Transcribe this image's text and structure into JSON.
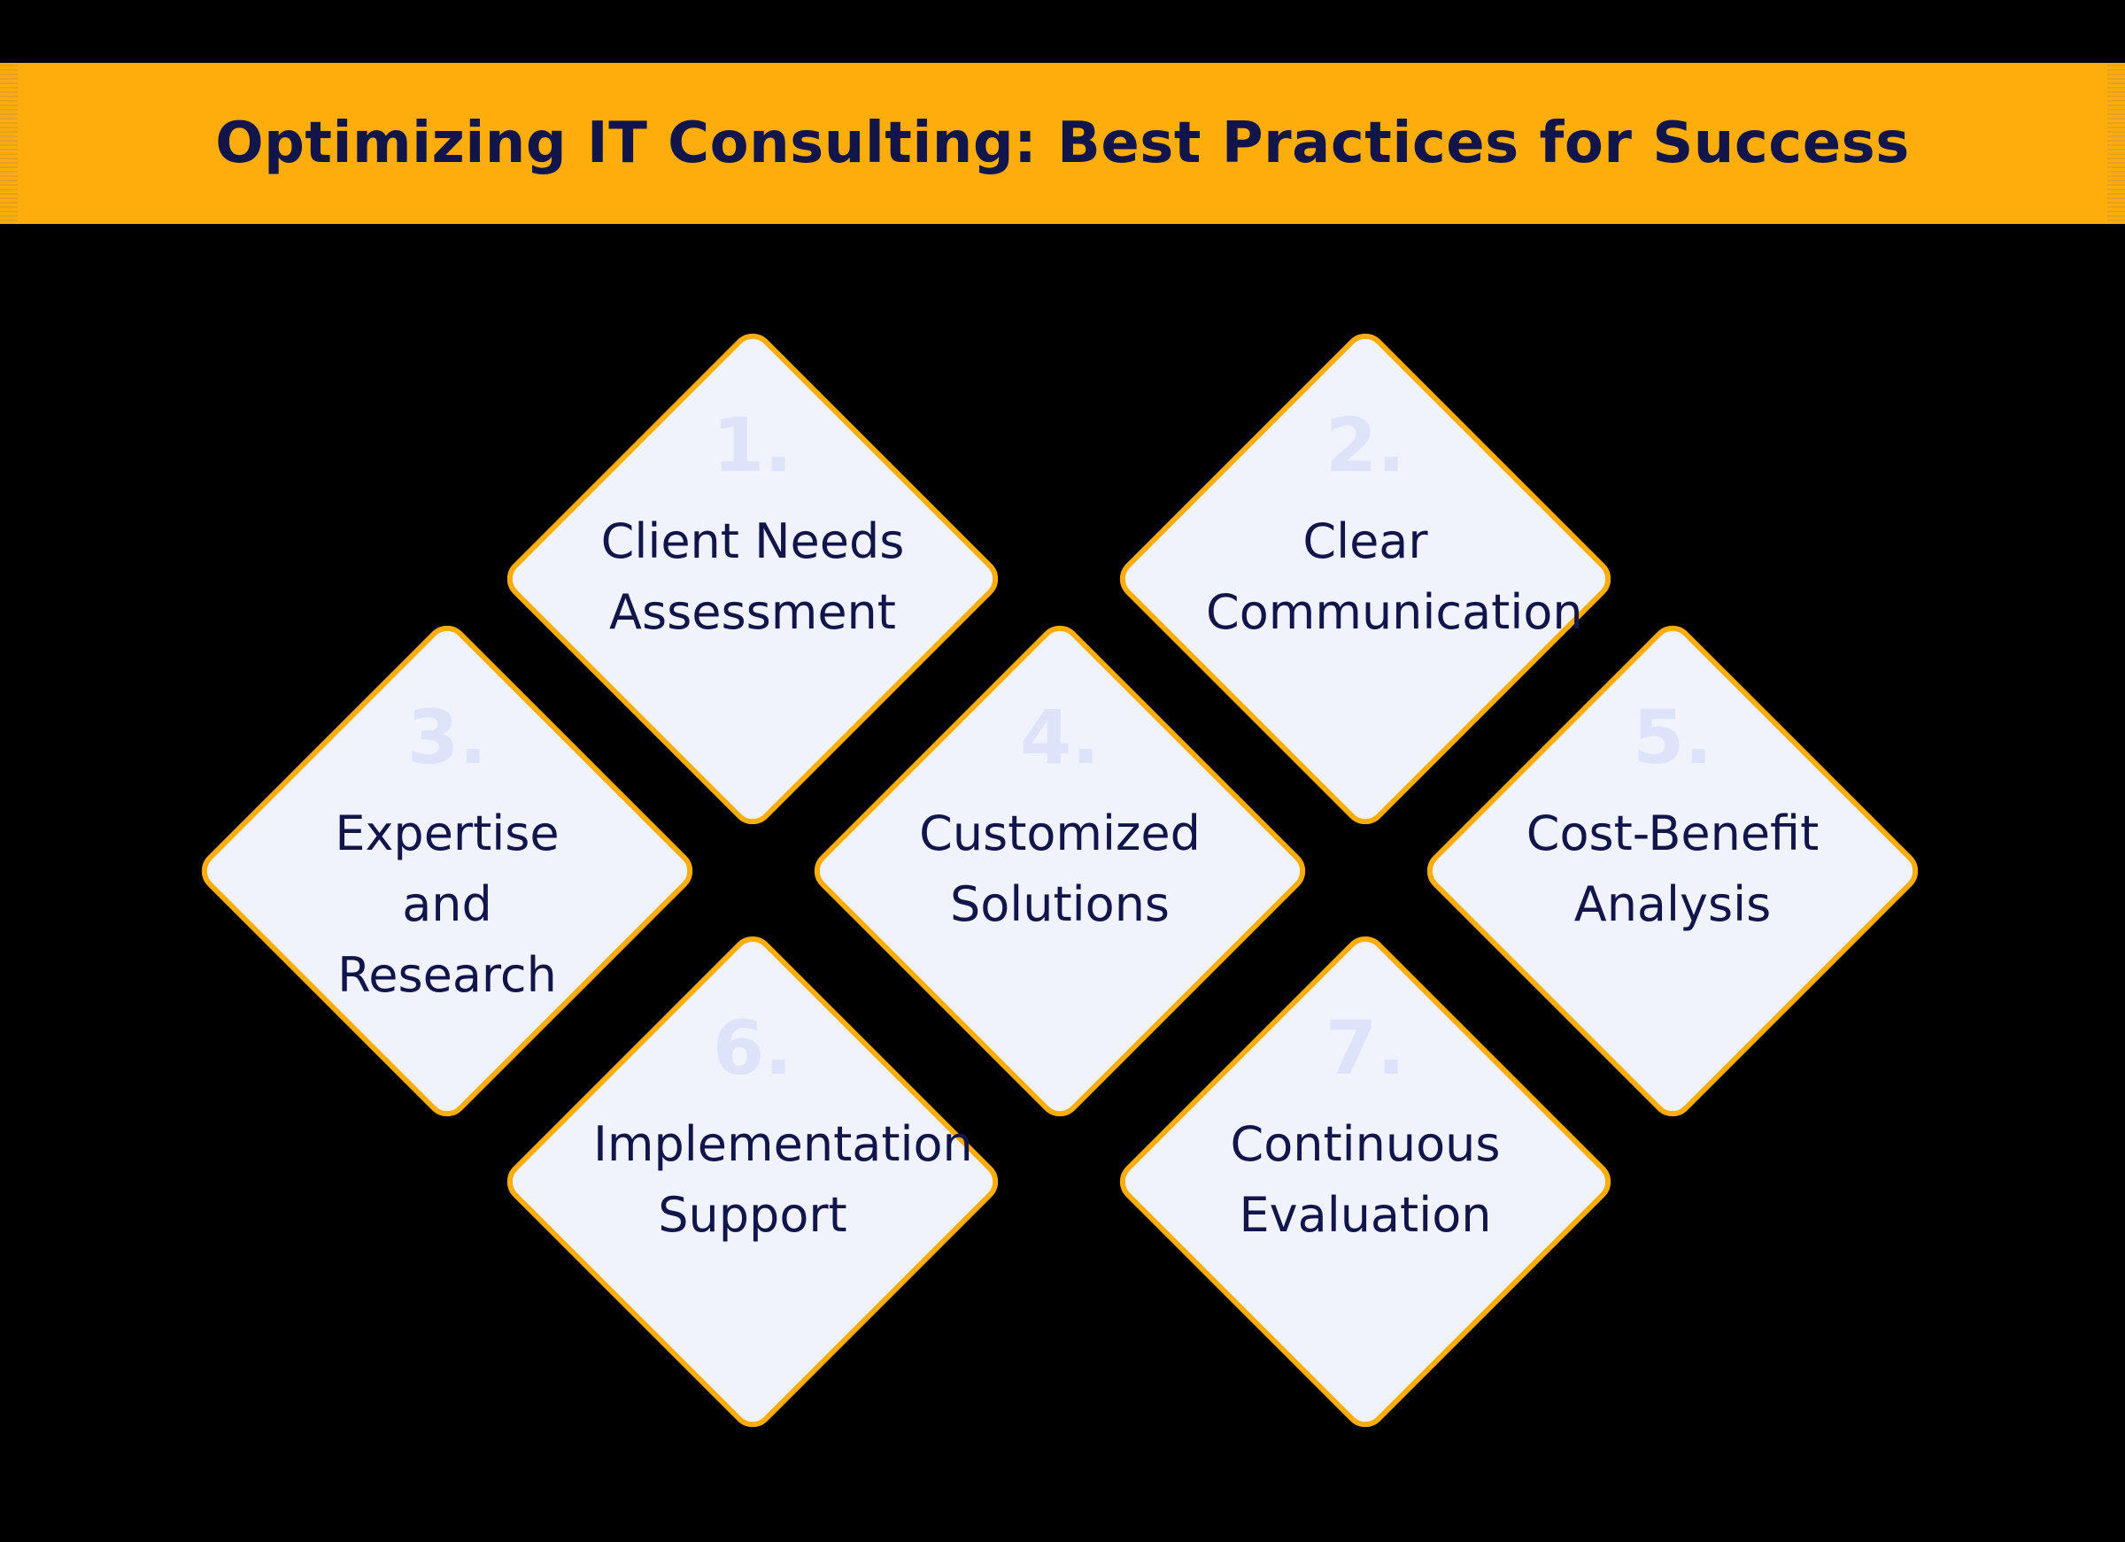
{
  "title": "Optimizing IT Consulting: Best Practices for Success",
  "colors": {
    "background": "#000000",
    "accent": "#ffad0b",
    "diamond_fill": "#f1f3fc",
    "text": "#11154a",
    "number": "#dde3f9"
  },
  "steps": [
    {
      "number": "1.",
      "label": "Client Needs Assessment"
    },
    {
      "number": "2.",
      "label": "Clear Communication"
    },
    {
      "number": "3.",
      "label": "Expertise and Research"
    },
    {
      "number": "4.",
      "label": "Customized Solutions"
    },
    {
      "number": "5.",
      "label": "Cost-Benefit Analysis"
    },
    {
      "number": "6.",
      "label": "Implementation Support"
    },
    {
      "number": "7.",
      "label": "Continuous Evaluation"
    }
  ]
}
